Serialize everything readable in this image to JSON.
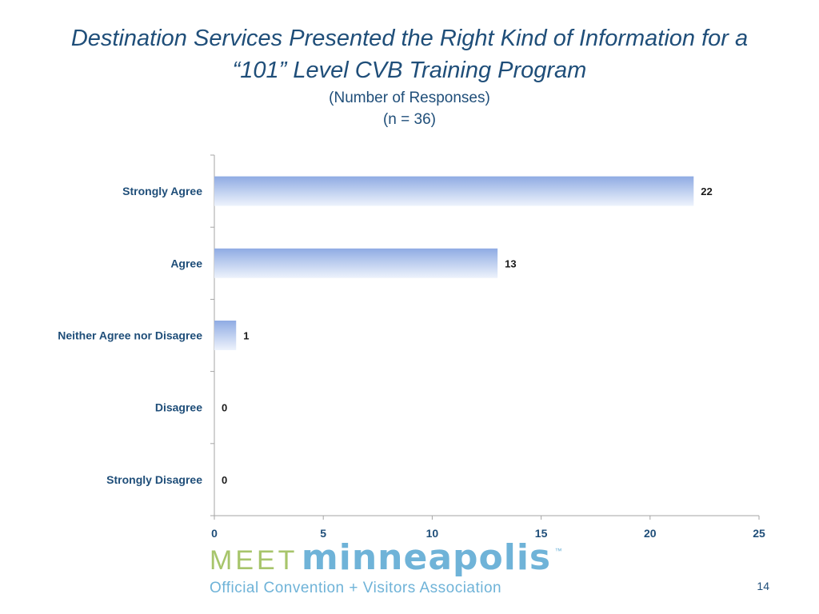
{
  "slide": {
    "title_line1": "Destination Services Presented the Right Kind of Information for a",
    "title_line2": "“101” Level CVB Training Program",
    "subtitle_line1": "(Number of Responses)",
    "subtitle_line2": "(n = 36)",
    "page_number": "14"
  },
  "logo": {
    "word1": "MEET",
    "word2": "minneapolis",
    "trademark": "™",
    "tagline": "Official Convention + Visitors Association",
    "colors": {
      "meet": "#a7c56b",
      "city": "#6fb3d8"
    }
  },
  "chart_data": {
    "type": "bar",
    "orientation": "horizontal",
    "categories": [
      "Strongly Agree",
      "Agree",
      "Neither Agree nor Disagree",
      "Disagree",
      "Strongly Disagree"
    ],
    "values": [
      22,
      13,
      1,
      0,
      0
    ],
    "xlim": [
      0,
      25
    ],
    "xticks": [
      0,
      5,
      10,
      15,
      20,
      25
    ],
    "title": "",
    "xlabel": "",
    "ylabel": "",
    "grid": false,
    "legend": "none",
    "colors": {
      "bar_top": "#8fabe3",
      "bar_bottom": "#eef3fc",
      "axis": "#a6a6a6",
      "text": "#1f4e79"
    }
  }
}
